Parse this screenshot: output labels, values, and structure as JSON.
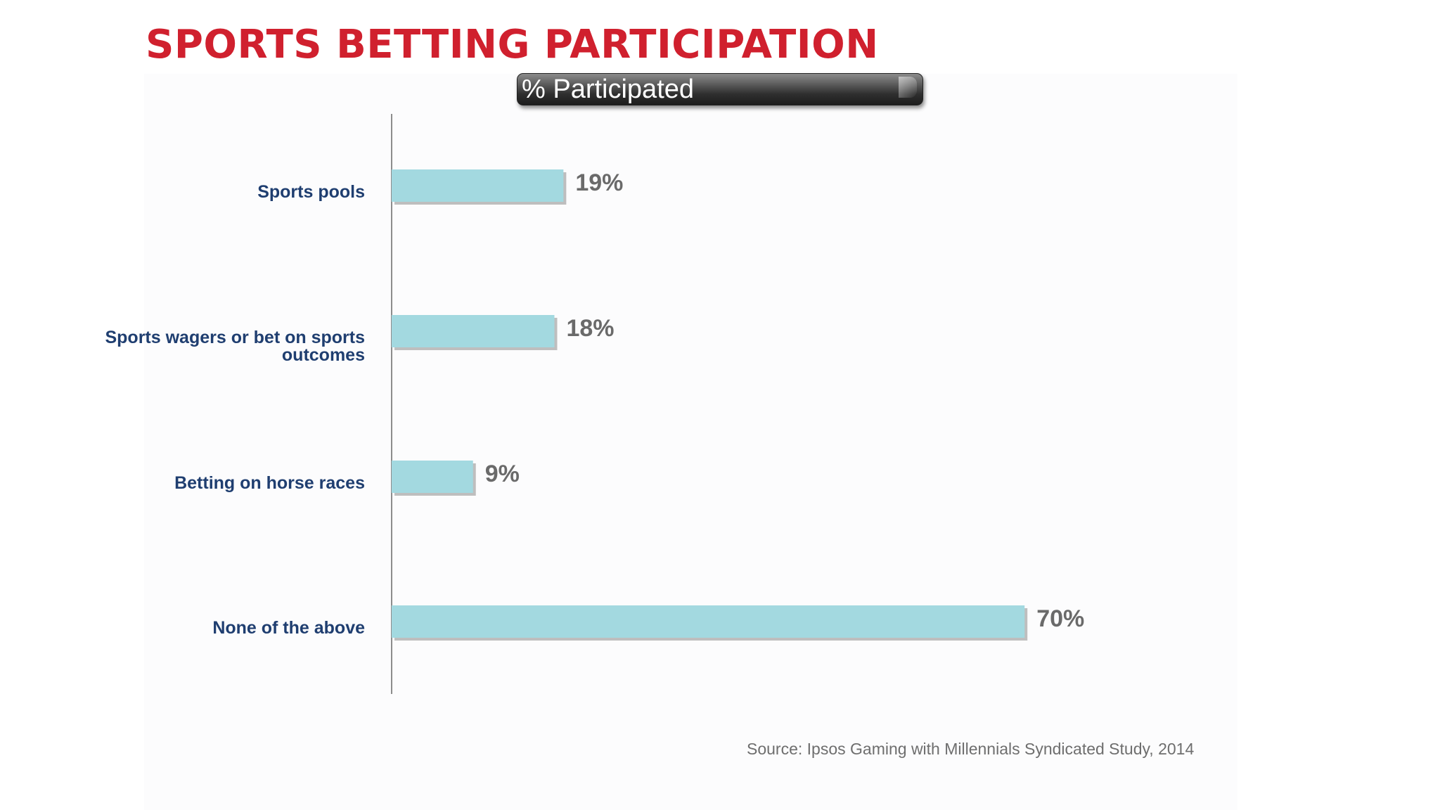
{
  "title": "SPORTS BETTING PARTICIPATION",
  "subtitle": "% Participated",
  "source": "Source:  Ipsos Gaming with Millennials Syndicated Study, 2014",
  "colors": {
    "title": "#d0202e",
    "bar": "#a3d9e0",
    "bar_shadow": "#8a8a8a",
    "category_text": "#1f3e70",
    "value_text": "#6a6a6a",
    "axis": "#8c8c8c",
    "source_text": "#6e6e6e"
  },
  "chart_data": {
    "type": "bar",
    "orientation": "horizontal",
    "title": "SPORTS BETTING PARTICIPATION",
    "subtitle": "% Participated",
    "categories": [
      "Sports pools",
      "Sports wagers or bet on sports outcomes",
      "Betting on horse races",
      "None of the above"
    ],
    "category_label_lines": [
      [
        "Sports pools"
      ],
      [
        "Sports wagers or bet on sports",
        "outcomes"
      ],
      [
        "Betting on horse races"
      ],
      [
        "None of the above"
      ]
    ],
    "values": [
      19,
      18,
      9,
      70
    ],
    "value_labels": [
      "19%",
      "18%",
      "9%",
      "70%"
    ],
    "unit": "%",
    "xlim": [
      0,
      100
    ],
    "grid": false,
    "legend": "none"
  }
}
